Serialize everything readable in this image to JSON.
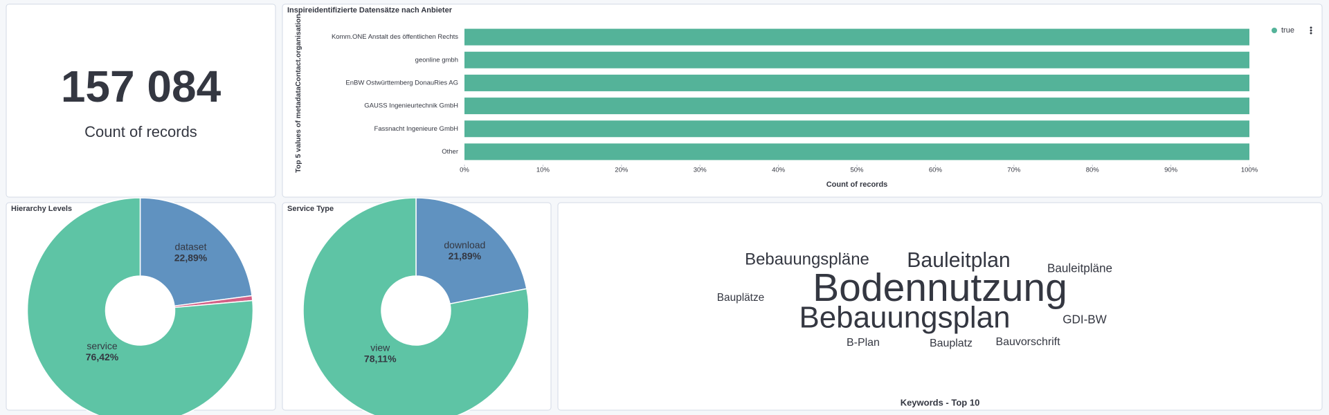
{
  "chart_data": [
    {
      "type": "metric",
      "values": [
        157084
      ],
      "value_labels": [
        "157 084"
      ],
      "label": "Count of records"
    },
    {
      "type": "bar",
      "title": "Inspireidentifizierte Datensätze nach Anbieter",
      "y_label": "Top 5 values of metadataContact.organisation",
      "x_label": "Count of records",
      "categories": [
        "Komm.ONE Anstalt des öffentlichen Rechts",
        "geonline gmbh",
        "EnBW Ostwürttemberg DonauRies AG",
        "GAUSS Ingenieurtechnik GmbH",
        "Fassnacht Ingenieure GmbH",
        "Other"
      ],
      "series": [
        {
          "name": "true",
          "color": "#54b399",
          "values": [
            100,
            100,
            100,
            100,
            100,
            100
          ]
        }
      ],
      "xlim": [
        0,
        100
      ],
      "xticks": [
        {
          "value": 0,
          "label": "0%"
        },
        {
          "value": 10,
          "label": "10%"
        },
        {
          "value": 20,
          "label": "20%"
        },
        {
          "value": 30,
          "label": "30%"
        },
        {
          "value": 40,
          "label": "40%"
        },
        {
          "value": 50,
          "label": "50%"
        },
        {
          "value": 60,
          "label": "60%"
        },
        {
          "value": 70,
          "label": "70%"
        },
        {
          "value": 80,
          "label": "80%"
        },
        {
          "value": 90,
          "label": "90%"
        },
        {
          "value": 100,
          "label": "100%"
        }
      ],
      "legend": "top-right"
    },
    {
      "type": "pie",
      "title": "Hierarchy Levels",
      "categories": [
        "dataset",
        null,
        "service"
      ],
      "values": [
        22.89,
        0.69,
        76.42
      ],
      "value_labels": [
        "22,89%",
        null,
        "76,42%"
      ],
      "colors": [
        "#6092c0",
        "#d36086",
        "#5ec4a5"
      ]
    },
    {
      "type": "pie",
      "title": "Service Type",
      "categories": [
        "download",
        "view"
      ],
      "values": [
        21.89,
        78.11
      ],
      "value_labels": [
        "21,89%",
        "78,11%"
      ],
      "colors": [
        "#6092c0",
        "#5ec4a5"
      ]
    },
    {
      "type": "wordcloud",
      "title": "Keywords - Top 10",
      "categories": [
        "Bebauungspläne",
        "Bauleitplan",
        "Bauleitpläne",
        "Bodennutzung",
        "Bauplätze",
        "Bebauungsplan",
        "GDI-BW",
        "B-Plan",
        "Bauplatz",
        "Bauvorschrift"
      ],
      "values": [
        42,
        53,
        30,
        100,
        27,
        77,
        30,
        28,
        28,
        28
      ],
      "colors": [
        "#9170b8",
        "#ca4f7a",
        "#d6bf57",
        "#54b399",
        "#e7664c",
        "#6092c0",
        "#d684a8",
        "#c4a36b",
        "#da8b45",
        "#aa6556"
      ]
    }
  ]
}
